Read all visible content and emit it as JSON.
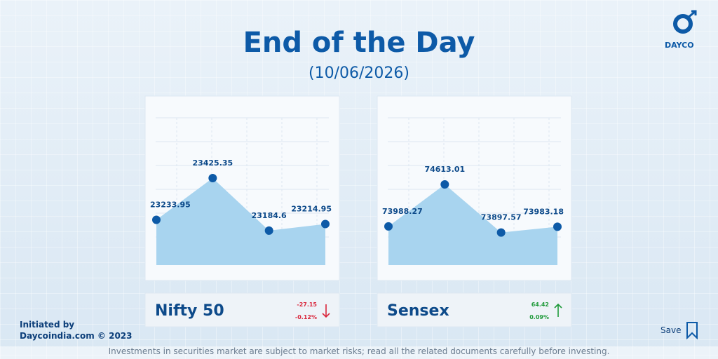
{
  "header": {
    "title": "End of the Day",
    "date": "(10/06/2026)",
    "logo": "DAYCO"
  },
  "chart_data": [
    {
      "type": "area",
      "title": "Nifty 50",
      "categories": [
        null,
        null,
        null,
        null
      ],
      "values": [
        23233.95,
        23425.35,
        23184.6,
        23214.95
      ],
      "ylim": [
        23027,
        23711
      ],
      "color": "#a8d4ef",
      "marker_color": "#0d5aa7",
      "change": -27.15,
      "change_pct": "-0.12%",
      "change_color": "#d9263b"
    },
    {
      "type": "area",
      "title": "Sensex",
      "categories": [
        null,
        null,
        null,
        null
      ],
      "values": [
        73988.27,
        74613.01,
        73897.57,
        73983.18
      ],
      "ylim": [
        73414,
        75634
      ],
      "color": "#a8d4ef",
      "marker_color": "#0d5aa7",
      "change": 64.42,
      "change_pct": "0.09%",
      "change_color": "#1f9a3a"
    }
  ],
  "footer": {
    "initiated": "Initiated by",
    "site": "Daycoindia.com © 2023",
    "disclaimer": "Investments in securities market are subject to market risks; read all the related documents carefully before investing.",
    "save": "Save"
  }
}
